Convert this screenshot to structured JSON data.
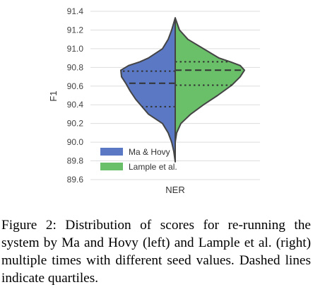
{
  "chart_data": {
    "type": "violin",
    "title": "",
    "xlabel": "",
    "ylabel": "F1",
    "ylim": [
      89.6,
      91.4
    ],
    "yticks": [
      "91.4",
      "91.2",
      "91.0",
      "90.8",
      "90.6",
      "90.4",
      "90.2",
      "90.0",
      "89.8",
      "89.6"
    ],
    "categories": [
      "NER"
    ],
    "grid": true,
    "legend_position": "lower-left",
    "split": true,
    "series": [
      {
        "name": "Ma & Hovy",
        "side": "left",
        "color": "#5b78c4",
        "quartiles": [
          90.38,
          90.63,
          90.76
        ],
        "range": [
          89.79,
          91.33
        ],
        "density": [
          [
            89.79,
            0.0
          ],
          [
            89.9,
            0.02
          ],
          [
            90.0,
            0.05
          ],
          [
            90.1,
            0.1
          ],
          [
            90.2,
            0.18
          ],
          [
            90.3,
            0.38
          ],
          [
            90.38,
            0.47
          ],
          [
            90.46,
            0.56
          ],
          [
            90.55,
            0.64
          ],
          [
            90.63,
            0.7
          ],
          [
            90.7,
            0.76
          ],
          [
            90.77,
            0.77
          ],
          [
            90.82,
            0.66
          ],
          [
            90.86,
            0.5
          ],
          [
            90.9,
            0.38
          ],
          [
            91.0,
            0.18
          ],
          [
            91.1,
            0.1
          ],
          [
            91.2,
            0.05
          ],
          [
            91.33,
            0.0
          ]
        ]
      },
      {
        "name": "Lample et al.",
        "side": "right",
        "color": "#6abf69",
        "quartiles": [
          90.61,
          90.77,
          90.86
        ],
        "range": [
          90.0,
          91.33
        ],
        "density": [
          [
            90.0,
            0.0
          ],
          [
            90.1,
            0.02
          ],
          [
            90.2,
            0.08
          ],
          [
            90.3,
            0.22
          ],
          [
            90.4,
            0.4
          ],
          [
            90.5,
            0.6
          ],
          [
            90.61,
            0.8
          ],
          [
            90.7,
            0.92
          ],
          [
            90.77,
            0.98
          ],
          [
            90.82,
            0.92
          ],
          [
            90.86,
            0.78
          ],
          [
            90.9,
            0.62
          ],
          [
            91.0,
            0.4
          ],
          [
            91.1,
            0.18
          ],
          [
            91.2,
            0.06
          ],
          [
            91.33,
            0.0
          ]
        ]
      }
    ]
  },
  "caption": "Figure 2: Distribution of scores for re-running the system by Ma and Hovy (left) and Lample et al. (right) multiple times with different seed values. Dashed lines indicate quartiles."
}
